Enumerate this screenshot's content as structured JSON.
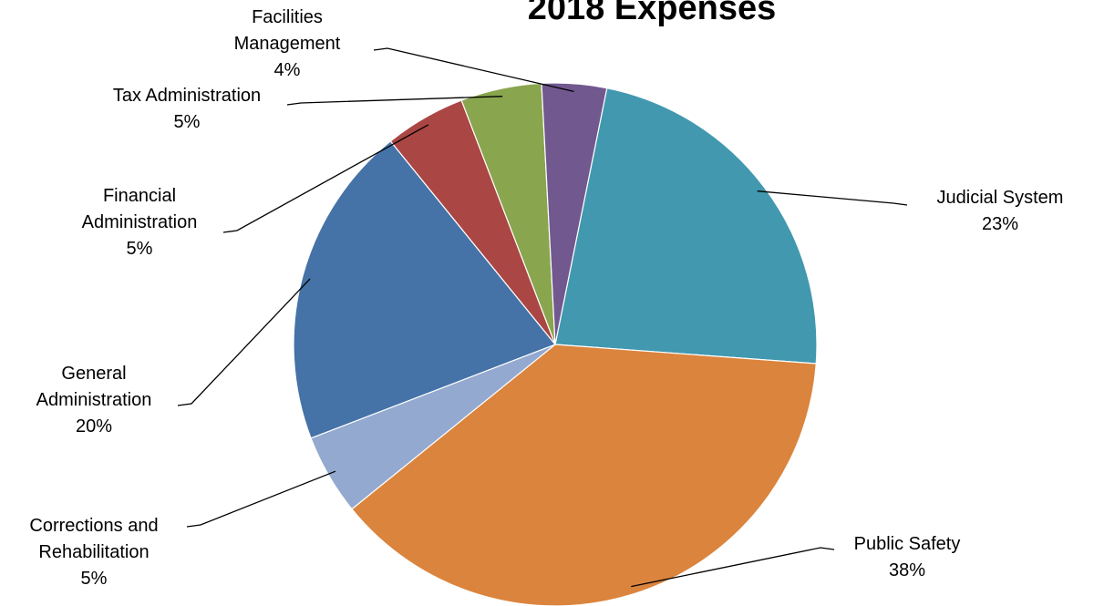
{
  "chart_data": {
    "type": "pie",
    "title": "2018 Expenses",
    "categories": [
      "Judicial System",
      "Public Safety",
      "Corrections and Rehabilitation",
      "General Administration",
      "Financial Administration",
      "Tax Administration",
      "Facilities Management"
    ],
    "values": [
      23,
      38,
      5,
      20,
      5,
      5,
      4
    ],
    "value_labels": [
      "23%",
      "38%",
      "5%",
      "20%",
      "5%",
      "5%",
      "4%"
    ],
    "colors": [
      "#4198af",
      "#db843d",
      "#93a9cf",
      "#4572a7",
      "#aa4643",
      "#89a54e",
      "#71588f"
    ]
  }
}
